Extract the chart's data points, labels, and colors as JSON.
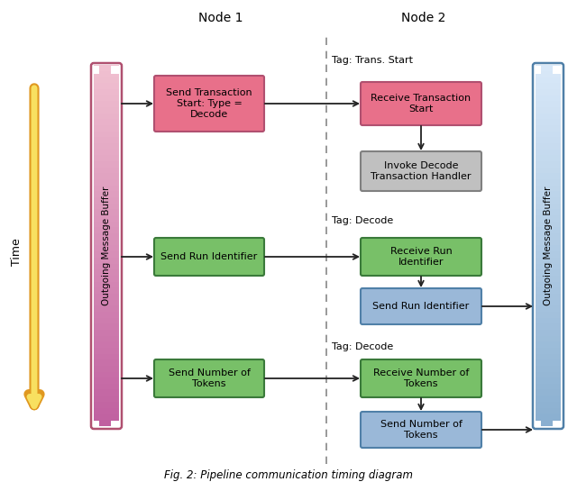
{
  "title": "Fig. 2: Pipeline communication timing diagram",
  "node1_label": "Node 1",
  "node2_label": "Node 2",
  "time_label": "Time",
  "outgoing_buffer_label": "Outgoing Message Buffer",
  "buffer_gradient_top1": "#F0C0D0",
  "buffer_gradient_bot1": "#C060A0",
  "buffer_gradient_top2": "#D8E8F8",
  "buffer_gradient_bot2": "#8AAFD0",
  "pink_box_facecolor": "#E8708A",
  "green_box_facecolor": "#78C068",
  "blue_box_facecolor": "#9AB8D8",
  "gray_box_facecolor": "#C0C0C0",
  "pink_box_edgecolor": "#B05070",
  "green_box_edgecolor": "#3A7A3A",
  "blue_box_edgecolor": "#5080A8",
  "gray_box_edgecolor": "#808080",
  "tag_trans_start": "Tag: Trans. Start",
  "tag_decode1": "Tag: Decode",
  "tag_decode2": "Tag: Decode",
  "box1_text": "Send Transaction\nStart: Type =\nDecode",
  "box2_text": "Receive Transaction\nStart",
  "box3_text": "Invoke Decode\nTransaction Handler",
  "box4_text": "Send Run Identifier",
  "box5_text": "Receive Run\nIdentifier",
  "box6_text": "Send Run Identifier",
  "box7_text": "Send Number of\nTokens",
  "box8_text": "Receive Number of\nTokens",
  "box9_text": "Send Number of\nTokens",
  "arrow_color": "#222222",
  "time_arrow_color_inner": "#F8E060",
  "time_arrow_color_outer": "#E09820"
}
